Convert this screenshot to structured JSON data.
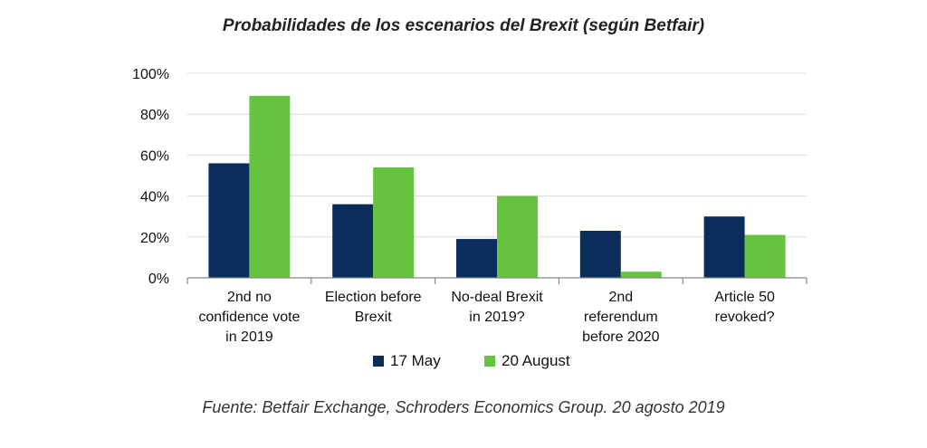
{
  "title": "Probabilidades de los escenarios del Brexit (según Betfair)",
  "source": "Fuente: Betfair Exchange, Schroders Economics Group. 20 agosto 2019",
  "colors": {
    "series1": "#0b2d5c",
    "series2": "#66c33f",
    "grid": "#d9d9d9",
    "axis": "#888888"
  },
  "chart_data": {
    "type": "bar",
    "title": "Probabilidades de los escenarios del Brexit (según Betfair)",
    "categories": [
      [
        "2nd no",
        "confidence vote",
        "in 2019"
      ],
      [
        "Election before",
        "Brexit"
      ],
      [
        "No-deal Brexit",
        "in 2019?"
      ],
      [
        "2nd",
        "referendum",
        "before 2020"
      ],
      [
        "Article 50",
        "revoked?"
      ]
    ],
    "series": [
      {
        "name": "17 May",
        "values": [
          56,
          36,
          19,
          23,
          30
        ]
      },
      {
        "name": "20 August",
        "values": [
          89,
          54,
          40,
          3,
          21
        ]
      }
    ],
    "yticks": [
      "0%",
      "20%",
      "40%",
      "60%",
      "80%",
      "100%"
    ],
    "ylim": [
      0,
      100
    ],
    "grid": true,
    "legend_position": "bottom"
  }
}
